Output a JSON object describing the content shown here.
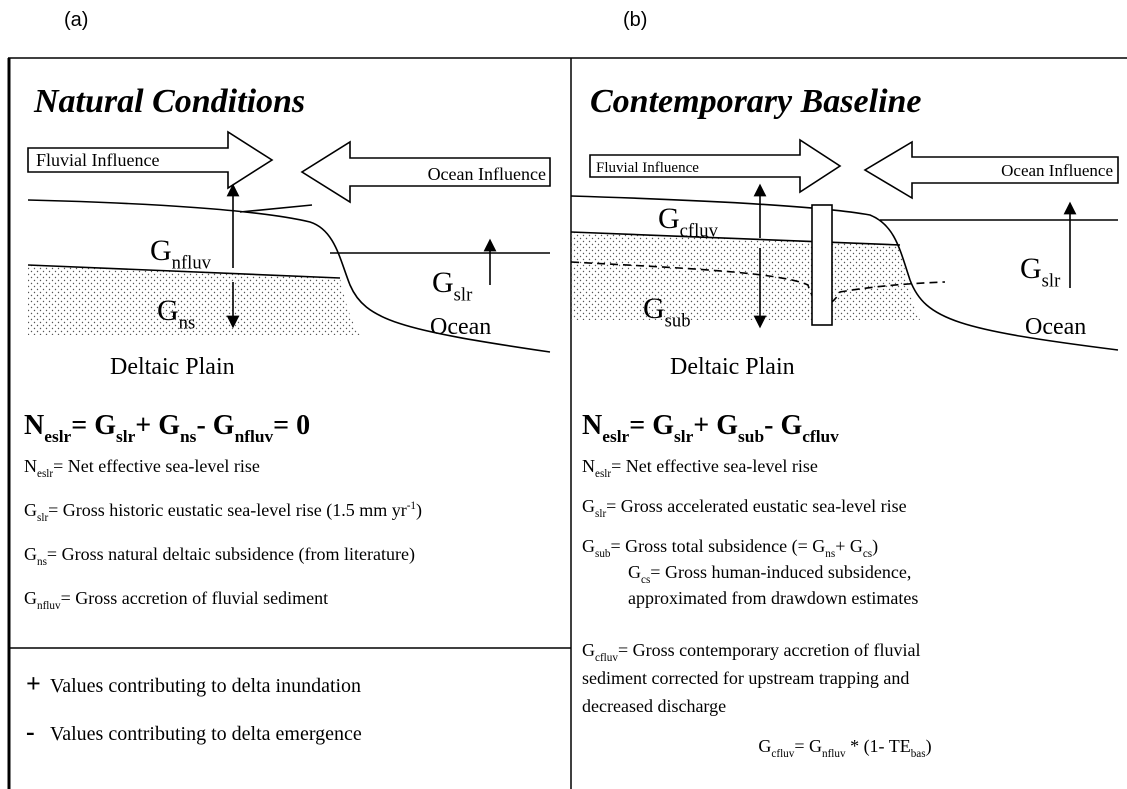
{
  "labels": [
    "(a)",
    "(b)"
  ],
  "panels": [
    {
      "title": "Natural Conditions",
      "arrows": [
        "Fluvial Influence",
        "Ocean Influence"
      ],
      "terms": [
        [
          {
            "b": "G",
            "s": "nfluv"
          }
        ],
        [
          {
            "b": "G",
            "s": "ns"
          }
        ],
        [
          {
            "b": "G",
            "s": "slr"
          }
        ]
      ],
      "ocean": "Ocean",
      "plain": "Deltaic Plain",
      "equation": [
        {
          "b": "N",
          "s": "eslr"
        },
        "= ",
        {
          "b": "G",
          "s": "slr"
        },
        "+ ",
        {
          "b": "G",
          "s": "ns"
        },
        "- ",
        {
          "b": "G",
          "s": "nfluv"
        },
        "= 0"
      ],
      "definitions": [
        [
          {
            "b": "N",
            "s": "eslr"
          },
          "= Net effective sea-level rise"
        ],
        [
          {
            "b": "G",
            "s": "slr"
          },
          "= Gross historic eustatic sea-level rise (1.5 mm yr",
          {
            "b": "",
            "p": "-1"
          },
          ")"
        ],
        [
          {
            "b": "G",
            "s": "ns"
          },
          "= Gross natural deltaic subsidence (from literature)"
        ],
        [
          {
            "b": "G",
            "s": "nfluv"
          },
          "= Gross accretion of fluvial sediment"
        ]
      ]
    },
    {
      "title": "Contemporary Baseline",
      "arrows": [
        "Fluvial Influence",
        "Ocean Influence"
      ],
      "terms": [
        [
          {
            "b": "G",
            "s": "cfluv"
          }
        ],
        [
          {
            "b": "G",
            "s": "sub"
          }
        ],
        [
          {
            "b": "G",
            "s": "slr"
          }
        ]
      ],
      "ocean": "Ocean",
      "plain": "Deltaic Plain",
      "equation": [
        {
          "b": "N",
          "s": "eslr"
        },
        "= ",
        {
          "b": "G",
          "s": "slr"
        },
        "+ ",
        {
          "b": "G",
          "s": "sub"
        },
        "- ",
        {
          "b": "G",
          "s": "cfluv"
        }
      ],
      "definitions": [
        [
          {
            "b": "N",
            "s": "eslr"
          },
          "= Net effective sea-level rise"
        ],
        [
          {
            "b": "G",
            "s": "slr"
          },
          "= Gross accelerated eustatic sea-level rise"
        ],
        [
          {
            "b": "G",
            "s": "sub"
          },
          "= Gross total subsidence (= ",
          {
            "b": "G",
            "s": "ns"
          },
          "+ ",
          {
            "b": "G",
            "s": "cs"
          },
          ")"
        ],
        [
          {
            "b": "G",
            "s": "cs"
          },
          "= Gross human-induced subsidence,"
        ],
        [
          "approximated from drawdown estimates"
        ],
        [
          {
            "b": "G",
            "s": "cfluv"
          },
          "= Gross contemporary accretion of fluvial"
        ],
        [
          "sediment corrected for upstream trapping and"
        ],
        [
          "decreased discharge"
        ],
        [
          {
            "b": "G",
            "s": "cfluv"
          },
          "= ",
          {
            "b": "G",
            "s": "nfluv"
          },
          " * (1- TE",
          {
            "b": "",
            "s": "bas"
          },
          ")"
        ]
      ]
    }
  ],
  "legend": [
    {
      "sym": "+",
      "text": "Values contributing to delta inundation"
    },
    {
      "sym": "-",
      "text": "Values contributing to delta emergence"
    }
  ]
}
